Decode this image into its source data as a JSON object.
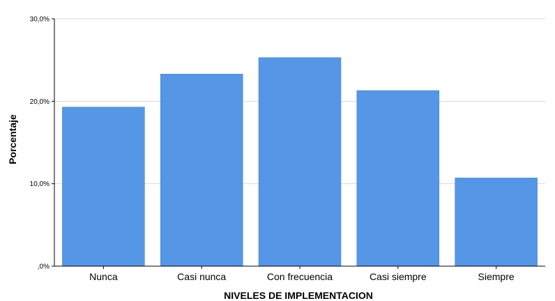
{
  "chart_data": {
    "type": "bar",
    "title": "",
    "xlabel": "NIVELES DE IMPLEMENTACION",
    "ylabel": "Porcentaje",
    "categories": [
      "Nunca",
      "Casi nunca",
      "Con frecuencia",
      "Casi siempre",
      "Siempre"
    ],
    "values": [
      19.3,
      23.3,
      25.3,
      21.3,
      10.7
    ],
    "ylim": [
      0,
      30
    ],
    "yticks": [
      0,
      10,
      20,
      30
    ],
    "ytick_labels": [
      ",0%",
      "10,0%",
      "20,0%",
      "30,0%"
    ],
    "grid": true,
    "bar_color": "#5596e6",
    "grid_color": "#d9d9d9",
    "axis_color": "#000000"
  }
}
